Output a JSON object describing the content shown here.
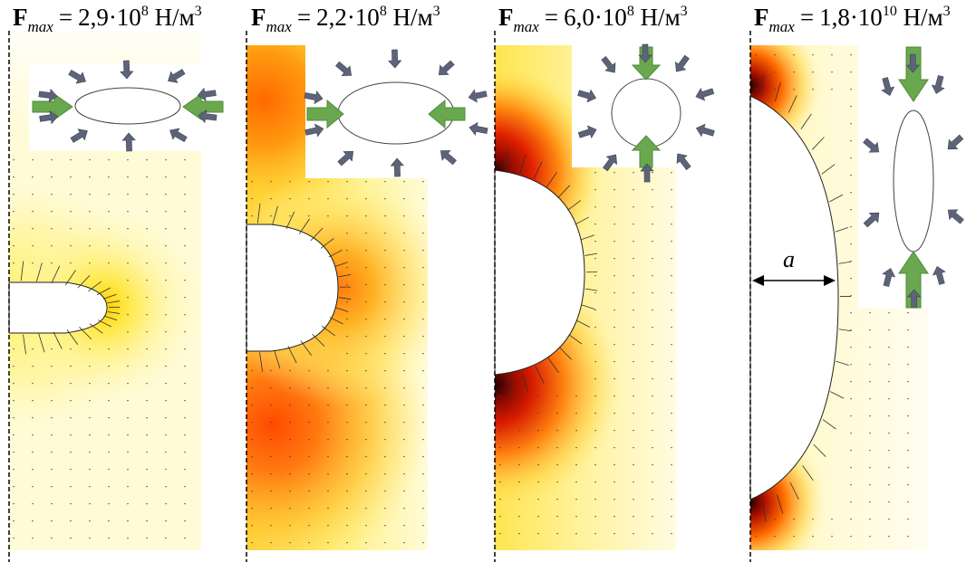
{
  "panels": [
    {
      "id": "p1",
      "title": {
        "symbol": "F",
        "subscript": "max",
        "equals": "=",
        "mantissa": "2,9·10",
        "exponent": "8",
        "unit": "Н/м",
        "unit_power": "3"
      },
      "stress_level": 0.3,
      "cavity": "horizontal-ellipse",
      "inset_icons": [
        "flow-arrow-icon",
        "compression-arrow-icon",
        "horizontal-ellipse-icon"
      ]
    },
    {
      "id": "p2",
      "title": {
        "symbol": "F",
        "subscript": "max",
        "equals": "=",
        "mantissa": "2,2·10",
        "exponent": "8",
        "unit": "Н/м",
        "unit_power": "3"
      },
      "stress_level": 0.75,
      "cavity": "wide-ellipse",
      "inset_icons": [
        "flow-arrow-icon",
        "compression-arrow-icon",
        "ellipse-icon"
      ]
    },
    {
      "id": "p3",
      "title": {
        "symbol": "F",
        "subscript": "max",
        "equals": "=",
        "mantissa": "6,0·10",
        "exponent": "8",
        "unit": "Н/м",
        "unit_power": "3"
      },
      "stress_level": 1.0,
      "cavity": "circle",
      "inset_icons": [
        "flow-arrow-icon",
        "compression-arrow-icon",
        "circle-icon"
      ]
    },
    {
      "id": "p4",
      "title": {
        "symbol": "F",
        "subscript": "max",
        "equals": "=",
        "mantissa": "1,8·10",
        "exponent": "10",
        "unit": "Н/м",
        "unit_power": "3"
      },
      "stress_level": 1.0,
      "cavity": "vertical-ellipse",
      "inset_icons": [
        "flow-arrow-icon",
        "compression-arrow-icon",
        "vertical-ellipse-icon"
      ],
      "dimension_label": "a"
    }
  ],
  "colors": {
    "field_light": "#fffbd2",
    "field_yellow": "#ffe94a",
    "field_orange": "#ff7a10",
    "field_red": "#d61a00",
    "field_dark": "#300000",
    "flow_arrow": "#6aa84f",
    "small_arrow": "#5e6478",
    "vector": "#303030"
  }
}
